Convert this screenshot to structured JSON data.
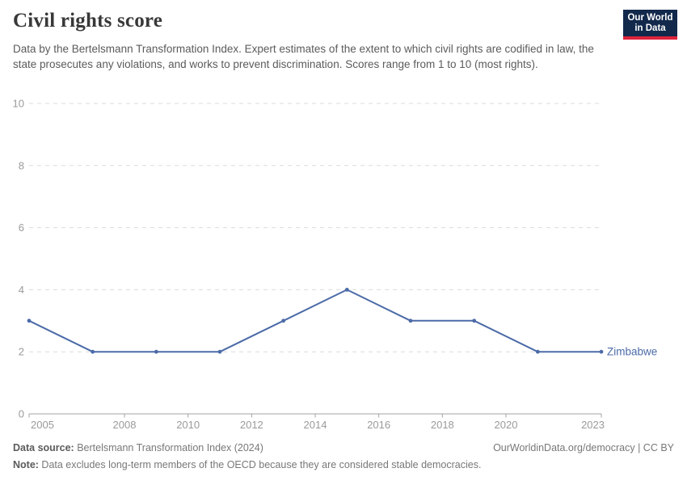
{
  "header": {
    "title": "Civil rights score",
    "subtitle": "Data by the Bertelsmann Transformation Index. Expert estimates of the extent to which civil rights are codified in law, the state prosecutes any violations, and works to prevent discrimination. Scores range from 1 to 10 (most rights).",
    "logo": {
      "line1": "Our World",
      "line2": "in Data",
      "bg_color": "#12294b",
      "accent_color": "#e0233c"
    }
  },
  "chart_data": {
    "type": "line",
    "title": "Civil rights score",
    "x": [
      2005,
      2007,
      2009,
      2011,
      2013,
      2015,
      2017,
      2019,
      2021,
      2023
    ],
    "series": [
      {
        "name": "Zimbabwe",
        "values": [
          3,
          2,
          2,
          2,
          3,
          4,
          3,
          3,
          2,
          2
        ],
        "color": "#4c6ba8"
      }
    ],
    "xlabel": "",
    "ylabel": "",
    "xlim": [
      2005,
      2023
    ],
    "ylim": [
      0,
      10
    ],
    "yticks": [
      0,
      2,
      4,
      6,
      8,
      10
    ],
    "xticks": [
      2005,
      2008,
      2010,
      2012,
      2014,
      2016,
      2018,
      2020,
      2023
    ],
    "grid": "horizontal-dashed",
    "legend_position": "end-of-line-label",
    "colors": {
      "gridline": "#dcdcdc",
      "axis": "#a3a3a3",
      "tick_label": "#9a9a9a"
    }
  },
  "footer": {
    "source_label": "Data source:",
    "source_text": " Bertelsmann Transformation Index (2024)",
    "link_text": "OurWorldinData.org/democracy | CC BY",
    "note_label": "Note:",
    "note_text": " Data excludes long-term members of the OECD because they are considered stable democracies."
  }
}
